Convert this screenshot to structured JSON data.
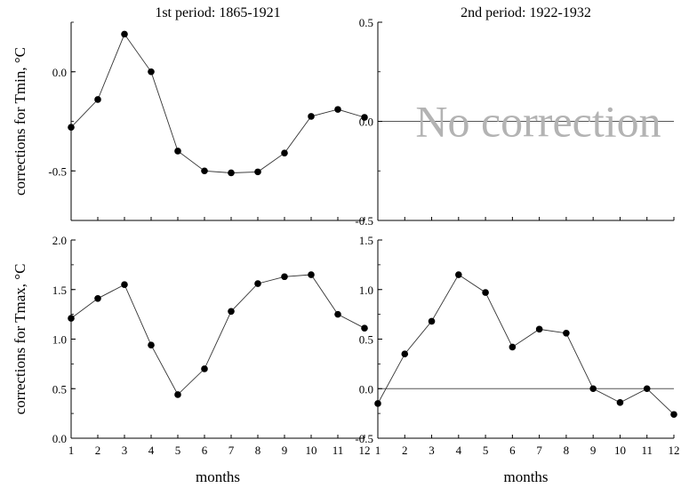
{
  "chart_data": [
    {
      "type": "line",
      "title": "1st period: 1865-1921",
      "ylabel": "corrections for Tmin, °C",
      "xlabel": "",
      "xlim": [
        1,
        12
      ],
      "ylim": [
        -0.75,
        0.25
      ],
      "yticks": [
        -0.5,
        0.0
      ],
      "ytick_labels": [
        "-0.5",
        "0.0"
      ],
      "series": [
        {
          "x": [
            1,
            2,
            3,
            4,
            5,
            6,
            7,
            8,
            9,
            10,
            11,
            12
          ],
          "y": [
            -0.28,
            -0.14,
            0.19,
            0.0,
            -0.4,
            -0.5,
            -0.51,
            -0.505,
            -0.41,
            -0.225,
            -0.19,
            -0.23
          ]
        }
      ],
      "zero_line": false,
      "annotation": ""
    },
    {
      "type": "line",
      "title": "2nd period: 1922-1932",
      "ylabel": "",
      "xlabel": "",
      "xlim": [
        1,
        12
      ],
      "ylim": [
        -0.5,
        0.5
      ],
      "yticks": [
        -0.5,
        0.0,
        0.5
      ],
      "ytick_labels": [
        "-0.5",
        "0.0",
        "0.5"
      ],
      "series": [],
      "zero_line": true,
      "annotation": "No correction"
    },
    {
      "type": "line",
      "title": "",
      "ylabel": "corrections for Tmax, °C",
      "xlabel": "months",
      "xlim": [
        1,
        12
      ],
      "ylim": [
        0.0,
        2.0
      ],
      "yticks": [
        0.0,
        0.5,
        1.0,
        1.5,
        2.0
      ],
      "ytick_labels": [
        "0.0",
        "0.5",
        "1.0",
        "1.5",
        "2.0"
      ],
      "xticks": [
        1,
        2,
        3,
        4,
        5,
        6,
        7,
        8,
        9,
        10,
        11,
        12
      ],
      "xtick_labels": [
        "1",
        "2",
        "3",
        "4",
        "5",
        "6",
        "7",
        "8",
        "9",
        "10",
        "11",
        "12"
      ],
      "series": [
        {
          "x": [
            1,
            2,
            3,
            4,
            5,
            6,
            7,
            8,
            9,
            10,
            11,
            12
          ],
          "y": [
            1.21,
            1.41,
            1.55,
            0.94,
            0.44,
            0.7,
            1.28,
            1.56,
            1.63,
            1.65,
            1.25,
            1.11
          ]
        }
      ],
      "zero_line": false,
      "annotation": ""
    },
    {
      "type": "line",
      "title": "",
      "ylabel": "",
      "xlabel": "months",
      "xlim": [
        1,
        12
      ],
      "ylim": [
        -0.5,
        1.5
      ],
      "yticks": [
        -0.5,
        0.0,
        0.5,
        1.0,
        1.5
      ],
      "ytick_labels": [
        "-0.5",
        "0.0",
        "0.5",
        "1.0",
        "1.5"
      ],
      "xticks": [
        1,
        2,
        3,
        4,
        5,
        6,
        7,
        8,
        9,
        10,
        11,
        12
      ],
      "xtick_labels": [
        "1",
        "2",
        "3",
        "4",
        "5",
        "6",
        "7",
        "8",
        "9",
        "10",
        "11",
        "12"
      ],
      "series": [
        {
          "x": [
            1,
            2,
            3,
            4,
            5,
            6,
            7,
            8,
            9,
            10,
            11,
            12
          ],
          "y": [
            -0.15,
            0.35,
            0.68,
            1.15,
            0.97,
            0.42,
            0.6,
            0.56,
            0.0,
            -0.14,
            0.0,
            -0.26
          ]
        }
      ],
      "zero_line": true,
      "annotation": ""
    }
  ]
}
